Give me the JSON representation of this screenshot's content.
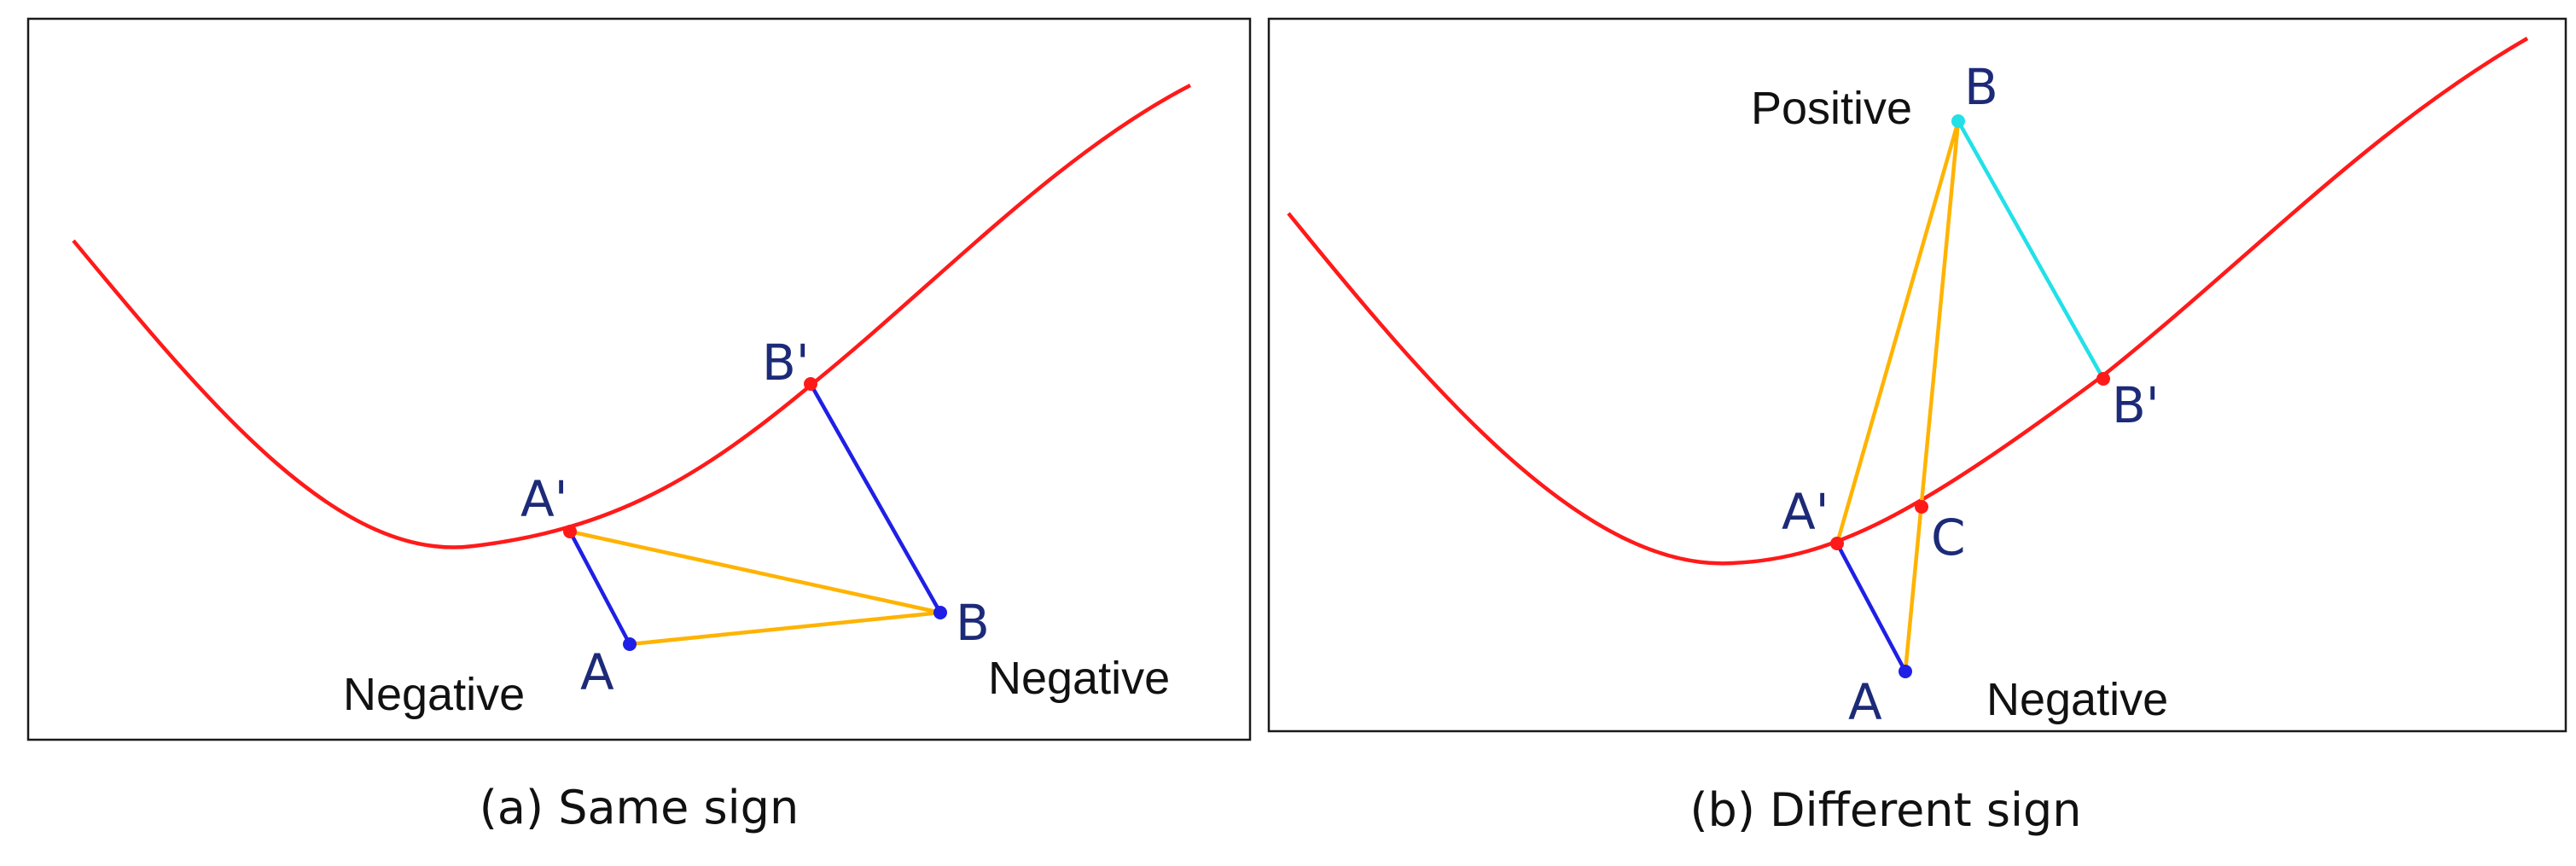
{
  "panels": [
    {
      "caption": "(a) Same sign",
      "point_labels": {
        "A": "A",
        "A_prime": "A'",
        "B": "B",
        "B_prime": "B'"
      },
      "sign_labels": [
        "Negative",
        "Negative"
      ]
    },
    {
      "caption": "(b) Different sign",
      "point_labels": {
        "A": "A",
        "A_prime": "A'",
        "B": "B",
        "B_prime": "B'",
        "C": "C"
      },
      "sign_labels": [
        "Positive",
        "Negative"
      ]
    }
  ],
  "colors": {
    "curve": "#ff1a1a",
    "normal_segment": "#1f1fe6",
    "positive_segment": "#22e0e8",
    "connector": "#ffb300",
    "point_on_curve": "#ff1a1a",
    "negative_point": "#1f1fe6",
    "positive_point": "#22e0e8",
    "label_text": "#1c2a78"
  }
}
